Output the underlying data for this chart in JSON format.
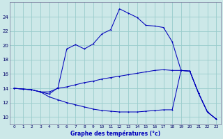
{
  "title": "Graphe des températures (°c)",
  "background_color": "#cce8e8",
  "grid_color": "#99cccc",
  "line_color": "#0000bb",
  "xlim": [
    -0.5,
    23.5
  ],
  "ylim": [
    9.0,
    26.0
  ],
  "yticks": [
    10,
    12,
    14,
    16,
    18,
    20,
    22,
    24
  ],
  "xticks": [
    0,
    1,
    2,
    3,
    4,
    5,
    6,
    7,
    8,
    9,
    10,
    11,
    12,
    13,
    14,
    15,
    16,
    17,
    18,
    19,
    20,
    21,
    22,
    23
  ],
  "series1_y": [
    14.0,
    13.9,
    13.8,
    13.5,
    13.2,
    14.1,
    19.5,
    20.1,
    19.5,
    20.2,
    21.6,
    22.2,
    25.1,
    24.5,
    23.9,
    22.8,
    22.7,
    22.5,
    20.5,
    16.5,
    16.4,
    13.3,
    10.7,
    9.7
  ],
  "series2_y": [
    14.0,
    13.9,
    13.8,
    13.5,
    13.5,
    14.0,
    14.2,
    14.5,
    14.8,
    15.0,
    15.3,
    15.5,
    15.7,
    15.9,
    16.1,
    16.3,
    16.5,
    16.6,
    16.5,
    16.5,
    16.4,
    13.3,
    10.7,
    9.7
  ],
  "series3_y": [
    14.0,
    13.9,
    13.8,
    13.5,
    12.8,
    12.4,
    12.0,
    11.7,
    11.4,
    11.1,
    10.9,
    10.8,
    10.7,
    10.7,
    10.7,
    10.8,
    10.9,
    11.0,
    11.0,
    16.5,
    16.4,
    13.3,
    10.7,
    9.7
  ]
}
